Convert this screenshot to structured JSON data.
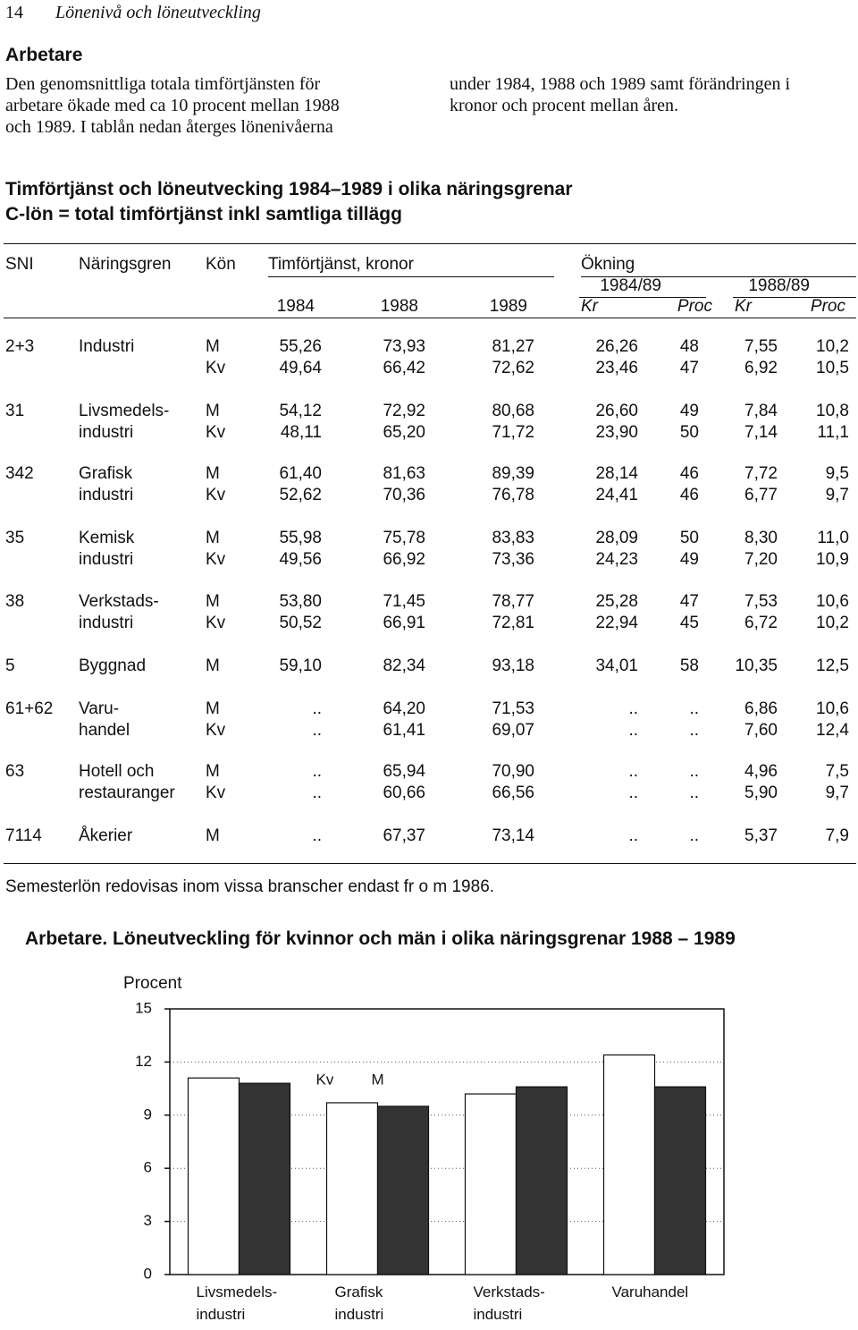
{
  "header": {
    "page_number": "14",
    "running_title": "Lönenivå och löneutveckling"
  },
  "section_heading": "Arbetare",
  "intro": {
    "left_lines": [
      "Den genomsnittliga totala timförtjänsten för",
      "arbetare ökade med ca 10 procent mellan 1988",
      "och 1989. I tablån nedan återges lönenivåerna"
    ],
    "right_lines": [
      "under 1984, 1988 och 1989 samt förändringen i",
      "kronor och procent mellan åren."
    ]
  },
  "table": {
    "title_lines": [
      "Timförtjänst och löneutvecking 1984–1989 i olika näringsgrenar",
      "C-lön = total timförtjänst inkl samtliga tillägg"
    ],
    "header": {
      "sni": "SNI",
      "branch": "Näringsgren",
      "sex": "Kön",
      "wage": "Timförtjänst, kronor",
      "increase": "Ökning",
      "period1": "1984/89",
      "period2": "1988/89",
      "years": [
        "1984",
        "1988",
        "1989"
      ],
      "units": [
        "Kr",
        "Proc",
        "Kr",
        "Proc"
      ]
    },
    "groups": [
      [
        [
          "2+3",
          "Industri",
          "M",
          "55,26",
          "73,93",
          "81,27",
          "26,26",
          "48",
          "7,55",
          "10,2"
        ],
        [
          null,
          null,
          "Kv",
          "49,64",
          "66,42",
          "72,62",
          "23,46",
          "47",
          "6,92",
          "10,5"
        ]
      ],
      [
        [
          "31",
          "Livsmedels-",
          "M",
          "54,12",
          "72,92",
          "80,68",
          "26,60",
          "49",
          "7,84",
          "10,8"
        ],
        [
          null,
          "industri",
          "Kv",
          "48,11",
          "65,20",
          "71,72",
          "23,90",
          "50",
          "7,14",
          "11,1"
        ]
      ],
      [
        [
          "342",
          "Grafisk",
          "M",
          "61,40",
          "81,63",
          "89,39",
          "28,14",
          "46",
          "7,72",
          "9,5"
        ],
        [
          null,
          "industri",
          "Kv",
          "52,62",
          "70,36",
          "76,78",
          "24,41",
          "46",
          "6,77",
          "9,7"
        ]
      ],
      [
        [
          "35",
          "Kemisk",
          "M",
          "55,98",
          "75,78",
          "83,83",
          "28,09",
          "50",
          "8,30",
          "11,0"
        ],
        [
          null,
          "industri",
          "Kv",
          "49,56",
          "66,92",
          "73,36",
          "24,23",
          "49",
          "7,20",
          "10,9"
        ]
      ],
      [
        [
          "38",
          "Verkstads-",
          "M",
          "53,80",
          "71,45",
          "78,77",
          "25,28",
          "47",
          "7,53",
          "10,6"
        ],
        [
          null,
          "industri",
          "Kv",
          "50,52",
          "66,91",
          "72,81",
          "22,94",
          "45",
          "6,72",
          "10,2"
        ]
      ],
      [
        [
          "5",
          "Byggnad",
          "M",
          "59,10",
          "82,34",
          "93,18",
          "34,01",
          "58",
          "10,35",
          "12,5"
        ]
      ],
      [
        [
          "61+62",
          "Varu-",
          "M",
          "..",
          "64,20",
          "71,53",
          "..",
          "..",
          "6,86",
          "10,6"
        ],
        [
          null,
          "handel",
          "Kv",
          "..",
          "61,41",
          "69,07",
          "..",
          "..",
          "7,60",
          "12,4"
        ]
      ],
      [
        [
          "63",
          "Hotell och",
          "M",
          "..",
          "65,94",
          "70,90",
          "..",
          "..",
          "4,96",
          "7,5"
        ],
        [
          null,
          "restauranger",
          "Kv",
          "..",
          "60,66",
          "66,56",
          "..",
          "..",
          "5,90",
          "9,7"
        ]
      ],
      [
        [
          "7114",
          "Åkerier",
          "M",
          "..",
          "67,37",
          "73,14",
          "..",
          "..",
          "5,37",
          "7,9"
        ]
      ]
    ]
  },
  "note": "Semesterlön redovisas inom vissa branscher endast fr o m 1986.",
  "chart_data": {
    "type": "bar",
    "title": "Arbetare. Löneutveckling för kvinnor och män i olika näringsgrenar 1988 – 1989",
    "y_label": "Procent",
    "categories": [
      "Livsmedels-\nindustri",
      "Grafisk\nindustri",
      "Verkstads-\nindustri",
      "Varuhandel"
    ],
    "series": [
      {
        "name": "Kv",
        "color": "#ffffff",
        "values": [
          11.1,
          9.7,
          10.2,
          12.4
        ]
      },
      {
        "name": "M",
        "color": "#333333",
        "values": [
          10.8,
          9.5,
          10.6,
          10.6
        ]
      }
    ],
    "ylim": [
      0,
      15
    ],
    "yticks": [
      0,
      3,
      6,
      9,
      12,
      15
    ],
    "grid": true
  }
}
